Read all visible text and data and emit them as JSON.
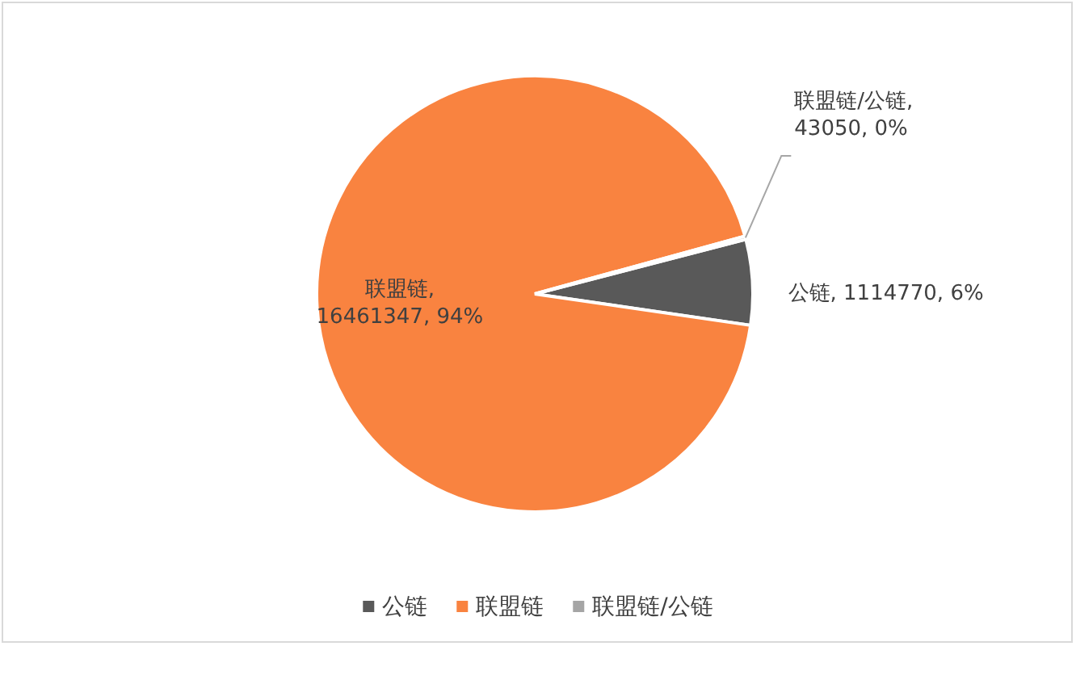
{
  "chart_data": {
    "type": "pie",
    "categories": [
      "公链",
      "联盟链",
      "联盟链/公链"
    ],
    "values": [
      1114770,
      16461347,
      43050
    ],
    "colors": [
      "#595959",
      "#f98340",
      "#a5a5a5"
    ],
    "value_labels": [
      "公链, 1114770, 6%",
      "联盟链,\n16461347, 94%",
      "联盟链/公链,\n43050, 0%"
    ],
    "legend": "bottom"
  }
}
